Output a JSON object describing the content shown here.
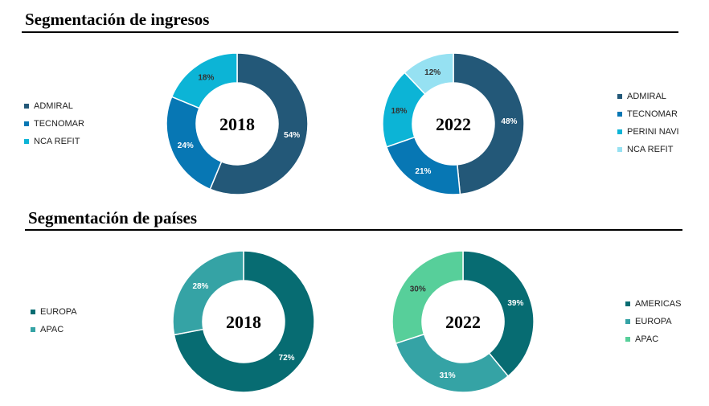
{
  "sections": {
    "revenue": {
      "title": "Segmentación de ingresos"
    },
    "countries": {
      "title": "Segmentación de países"
    }
  },
  "chart_data": [
    {
      "type": "pie",
      "center_label": "2018",
      "categories": [
        "ADMIRAL",
        "TECNOMAR",
        "NCA REFIT"
      ],
      "values": [
        54,
        24,
        18
      ],
      "labels": [
        "54%",
        "24%",
        "18%"
      ],
      "colors": [
        "#235878",
        "#0777B4",
        "#0CB4D6"
      ],
      "label_colors": [
        "#ffffff",
        "#ffffff",
        "#333333"
      ],
      "legend": "left"
    },
    {
      "type": "pie",
      "center_label": "2022",
      "categories": [
        "ADMIRAL",
        "TECNOMAR",
        "PERINI NAVI",
        "NCA REFIT"
      ],
      "values": [
        48,
        21,
        18,
        12
      ],
      "labels": [
        "48%",
        "21%",
        "18%",
        "12%"
      ],
      "colors": [
        "#235878",
        "#0777B4",
        "#0CB4D6",
        "#96E1F2"
      ],
      "label_colors": [
        "#ffffff",
        "#ffffff",
        "#333333",
        "#333333"
      ],
      "legend": "right"
    },
    {
      "type": "pie",
      "center_label": "2018",
      "categories": [
        "EUROPA",
        "APAC"
      ],
      "values": [
        72,
        28
      ],
      "labels": [
        "72%",
        "28%"
      ],
      "colors": [
        "#076C72",
        "#35A3A5"
      ],
      "label_colors": [
        "#ffffff",
        "#ffffff"
      ],
      "legend": "left"
    },
    {
      "type": "pie",
      "center_label": "2022",
      "categories": [
        "AMERICAS",
        "EUROPA",
        "APAC"
      ],
      "values": [
        39,
        31,
        30
      ],
      "labels": [
        "39%",
        "31%",
        "30%"
      ],
      "colors": [
        "#076C72",
        "#35A3A5",
        "#57CF9A"
      ],
      "label_colors": [
        "#ffffff",
        "#ffffff",
        "#333333"
      ],
      "legend": "right"
    }
  ]
}
